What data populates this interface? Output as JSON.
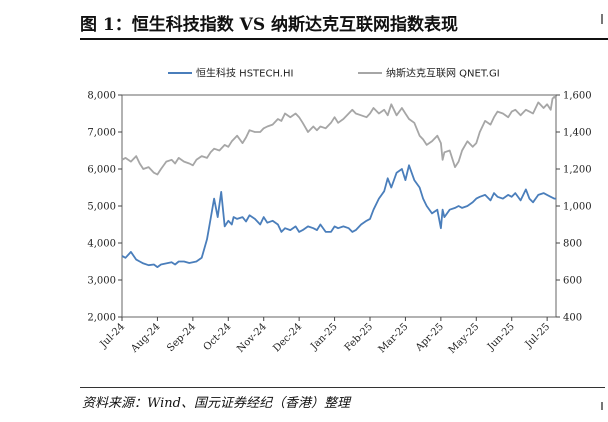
{
  "figure": {
    "title": "图 1：恒生科技指数 VS 纳斯达克互联网指数表现",
    "source": "资料来源：Wind、国元证券经纪（香港）整理"
  },
  "chart_data": {
    "type": "line",
    "title": "图 1：恒生科技指数 VS 纳斯达克互联网指数表现",
    "x_tick_labels": [
      "Jul-24",
      "Aug-24",
      "Sep-24",
      "Oct-24",
      "Nov-24",
      "Dec-24",
      "Jan-25",
      "Feb-25",
      "Mar-25",
      "Apr-25",
      "May-25",
      "Jun-25",
      "Jul-25"
    ],
    "x_range": [
      0,
      12.25
    ],
    "left_axis": {
      "ylim": [
        2000,
        8000
      ],
      "ticks": [
        "2,000",
        "3,000",
        "4,000",
        "5,000",
        "6,000",
        "7,000",
        "8,000"
      ]
    },
    "right_axis": {
      "ylim": [
        400,
        1600
      ],
      "ticks": [
        "400",
        "600",
        "800",
        "1,000",
        "1,200",
        "1,400",
        "1,600"
      ]
    },
    "legend_position": "top",
    "series": [
      {
        "name": "恒生科技 HSTECH.HI",
        "axis": "left",
        "color": "#4a7ebb",
        "x": [
          0,
          0.1,
          0.25,
          0.4,
          0.5,
          0.6,
          0.75,
          0.9,
          1.0,
          1.1,
          1.25,
          1.4,
          1.5,
          1.6,
          1.75,
          1.9,
          2.0,
          2.1,
          2.25,
          2.4,
          2.5,
          2.6,
          2.7,
          2.8,
          2.9,
          3.0,
          3.1,
          3.15,
          3.25,
          3.4,
          3.5,
          3.6,
          3.75,
          3.9,
          4.0,
          4.1,
          4.25,
          4.4,
          4.5,
          4.6,
          4.75,
          4.9,
          5.0,
          5.1,
          5.25,
          5.4,
          5.5,
          5.6,
          5.75,
          5.9,
          6.0,
          6.1,
          6.25,
          6.4,
          6.5,
          6.6,
          6.75,
          6.9,
          7.0,
          7.1,
          7.25,
          7.4,
          7.5,
          7.6,
          7.75,
          7.9,
          8.0,
          8.1,
          8.25,
          8.4,
          8.5,
          8.6,
          8.75,
          8.9,
          9.0,
          9.05,
          9.1,
          9.25,
          9.4,
          9.5,
          9.6,
          9.75,
          9.9,
          10.0,
          10.1,
          10.25,
          10.4,
          10.5,
          10.6,
          10.75,
          10.9,
          11.0,
          11.1,
          11.25,
          11.4,
          11.5,
          11.6,
          11.75,
          11.9,
          12.0,
          12.1,
          12.2,
          12.25
        ],
        "values": [
          3650,
          3600,
          3760,
          3550,
          3500,
          3450,
          3400,
          3420,
          3350,
          3420,
          3450,
          3480,
          3420,
          3500,
          3500,
          3460,
          3480,
          3500,
          3600,
          4100,
          4650,
          5200,
          4700,
          5380,
          4450,
          4600,
          4500,
          4700,
          4650,
          4700,
          4580,
          4750,
          4650,
          4500,
          4700,
          4550,
          4600,
          4500,
          4300,
          4400,
          4350,
          4450,
          4300,
          4350,
          4450,
          4400,
          4350,
          4500,
          4300,
          4300,
          4450,
          4400,
          4450,
          4400,
          4300,
          4350,
          4500,
          4600,
          4650,
          4900,
          5200,
          5400,
          5750,
          5500,
          5900,
          6000,
          5700,
          6100,
          5700,
          5500,
          5200,
          5000,
          4800,
          4900,
          4400,
          4900,
          4700,
          4900,
          4950,
          5000,
          4950,
          5000,
          5100,
          5200,
          5250,
          5300,
          5150,
          5350,
          5250,
          5200,
          5300,
          5250,
          5350,
          5150,
          5450,
          5200,
          5100,
          5300,
          5350,
          5300,
          5250,
          5200,
          5200
        ]
      },
      {
        "name": "纳斯达克互联网 QNET.GI",
        "axis": "right",
        "color": "#a6a6a6",
        "x": [
          0,
          0.1,
          0.25,
          0.4,
          0.5,
          0.6,
          0.75,
          0.9,
          1.0,
          1.1,
          1.25,
          1.4,
          1.5,
          1.6,
          1.75,
          1.9,
          2.0,
          2.1,
          2.25,
          2.4,
          2.5,
          2.6,
          2.75,
          2.9,
          3.0,
          3.1,
          3.25,
          3.4,
          3.5,
          3.6,
          3.75,
          3.9,
          4.0,
          4.1,
          4.25,
          4.4,
          4.5,
          4.6,
          4.75,
          4.9,
          5.0,
          5.1,
          5.25,
          5.4,
          5.5,
          5.6,
          5.75,
          5.9,
          6.0,
          6.1,
          6.25,
          6.4,
          6.5,
          6.6,
          6.75,
          6.9,
          7.0,
          7.1,
          7.25,
          7.4,
          7.5,
          7.6,
          7.75,
          7.9,
          8.0,
          8.1,
          8.25,
          8.4,
          8.5,
          8.6,
          8.75,
          8.9,
          9.0,
          9.05,
          9.1,
          9.25,
          9.4,
          9.5,
          9.6,
          9.75,
          9.9,
          10.0,
          10.1,
          10.25,
          10.4,
          10.5,
          10.6,
          10.75,
          10.9,
          11.0,
          11.1,
          11.25,
          11.4,
          11.5,
          11.6,
          11.75,
          11.9,
          12.0,
          12.1,
          12.15,
          12.2,
          12.25
        ],
        "values": [
          1250,
          1260,
          1240,
          1270,
          1230,
          1200,
          1210,
          1180,
          1170,
          1200,
          1240,
          1250,
          1230,
          1260,
          1240,
          1230,
          1220,
          1250,
          1270,
          1260,
          1290,
          1310,
          1300,
          1330,
          1320,
          1350,
          1380,
          1340,
          1370,
          1410,
          1400,
          1400,
          1420,
          1430,
          1440,
          1470,
          1460,
          1500,
          1480,
          1500,
          1480,
          1450,
          1400,
          1430,
          1410,
          1430,
          1420,
          1450,
          1480,
          1450,
          1470,
          1500,
          1520,
          1500,
          1490,
          1480,
          1500,
          1530,
          1500,
          1520,
          1490,
          1550,
          1490,
          1530,
          1500,
          1470,
          1450,
          1380,
          1360,
          1330,
          1350,
          1380,
          1340,
          1250,
          1290,
          1300,
          1210,
          1240,
          1300,
          1350,
          1320,
          1340,
          1400,
          1460,
          1440,
          1480,
          1510,
          1500,
          1480,
          1510,
          1520,
          1490,
          1520,
          1510,
          1500,
          1560,
          1530,
          1550,
          1520,
          1580,
          1590,
          1580
        ]
      }
    ]
  }
}
